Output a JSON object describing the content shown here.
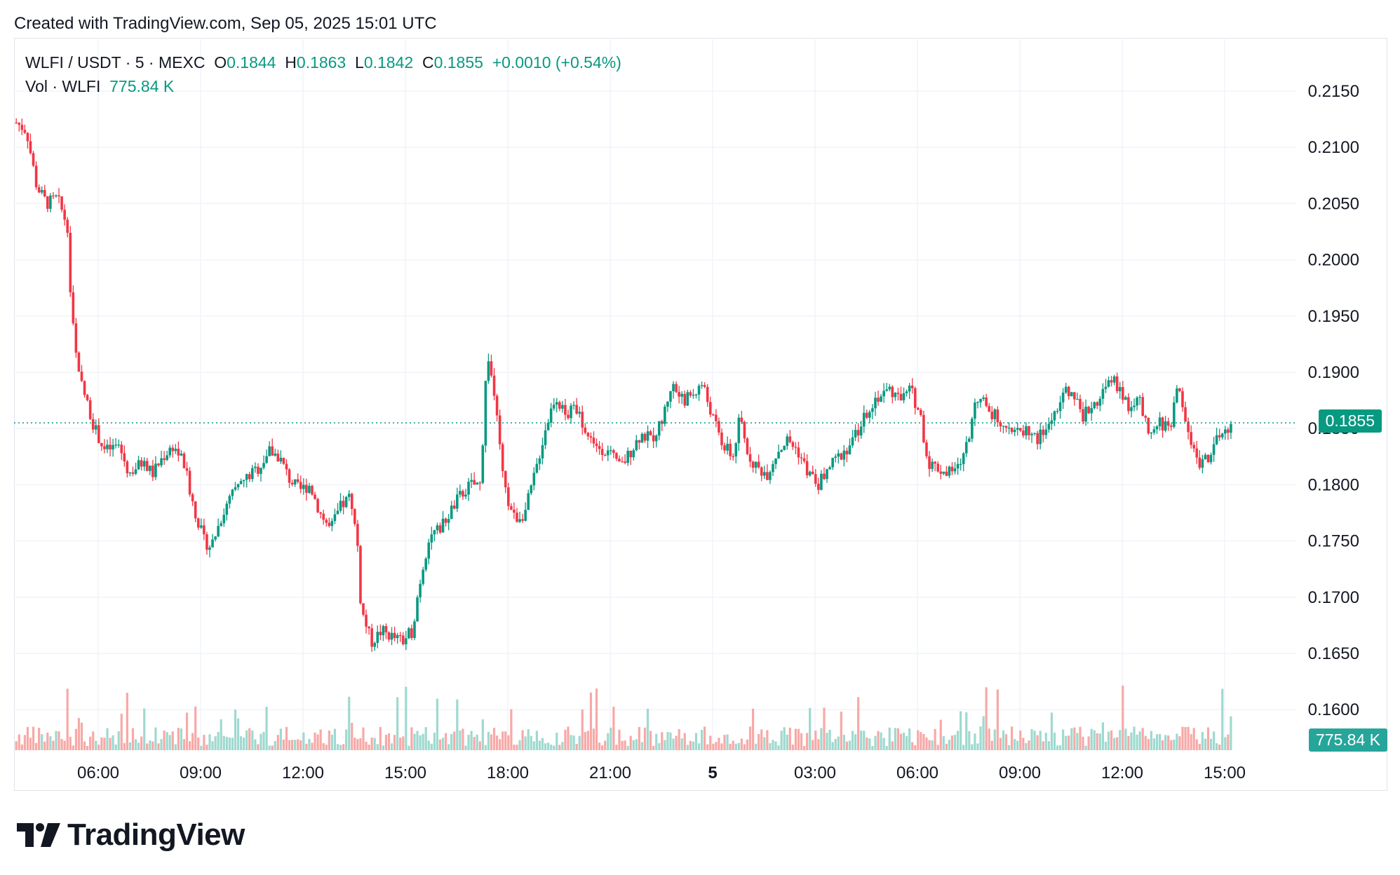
{
  "header": {
    "created_text": "Created with TradingView.com, Sep 05, 2025 15:01 UTC"
  },
  "legend": {
    "symbol": "WLFI / USDT · 5 · MEXC",
    "open_label": "O",
    "open": "0.1844",
    "high_label": "H",
    "high": "0.1863",
    "low_label": "L",
    "low": "0.1842",
    "close_label": "C",
    "close": "0.1855",
    "change": "+0.0010 (+0.54%)",
    "vol_label": "Vol · WLFI",
    "vol_value": "775.84 K"
  },
  "badges": {
    "last_price": "0.1855",
    "last_volume": "775.84 K"
  },
  "colors": {
    "up": "#089981",
    "down": "#f23645",
    "up_vol": "#9fd9cf",
    "down_vol": "#f7a9a7",
    "grid": "#f0f3fa"
  },
  "brand": {
    "name": "TradingView",
    "logo_icon": "tradingview-logo-icon"
  },
  "chart_data": {
    "type": "candlestick",
    "symbol": "WLFI/USDT",
    "interval": "5m",
    "exchange": "MEXC",
    "y_axis": {
      "ticks": [
        "0.2150",
        "0.2100",
        "0.2050",
        "0.2000",
        "0.1950",
        "0.1900",
        "0.1850",
        "0.1800",
        "0.1750",
        "0.1700",
        "0.1650",
        "0.1600"
      ],
      "ylim": [
        0.1556,
        0.2187
      ]
    },
    "x_axis": {
      "ticks": [
        "06:00",
        "09:00",
        "12:00",
        "15:00",
        "18:00",
        "21:00",
        "5",
        "03:00",
        "06:00",
        "09:00",
        "12:00",
        "15:00"
      ],
      "bold_tick": "5",
      "range_hours": [
        3.6,
        39.2
      ]
    },
    "last_price": 0.1855,
    "close_path": [
      [
        3.6,
        0.2122
      ],
      [
        3.9,
        0.2115
      ],
      [
        4.2,
        0.2065
      ],
      [
        4.5,
        0.205
      ],
      [
        4.8,
        0.2055
      ],
      [
        5.1,
        0.203
      ],
      [
        5.2,
        0.196
      ],
      [
        5.4,
        0.19
      ],
      [
        5.6,
        0.188
      ],
      [
        5.9,
        0.185
      ],
      [
        6.2,
        0.183
      ],
      [
        6.6,
        0.1835
      ],
      [
        6.9,
        0.181
      ],
      [
        7.3,
        0.182
      ],
      [
        7.6,
        0.181
      ],
      [
        7.9,
        0.1825
      ],
      [
        8.2,
        0.1835
      ],
      [
        8.5,
        0.182
      ],
      [
        8.8,
        0.178
      ],
      [
        9.1,
        0.175
      ],
      [
        9.3,
        0.1745
      ],
      [
        9.6,
        0.177
      ],
      [
        9.9,
        0.179
      ],
      [
        10.3,
        0.1805
      ],
      [
        10.7,
        0.1815
      ],
      [
        11.0,
        0.183
      ],
      [
        11.3,
        0.1825
      ],
      [
        11.6,
        0.1805
      ],
      [
        11.9,
        0.1795
      ],
      [
        12.2,
        0.18
      ],
      [
        12.5,
        0.1775
      ],
      [
        12.8,
        0.176
      ],
      [
        13.1,
        0.178
      ],
      [
        13.4,
        0.179
      ],
      [
        13.6,
        0.1745
      ],
      [
        13.7,
        0.169
      ],
      [
        14.0,
        0.166
      ],
      [
        14.3,
        0.167
      ],
      [
        14.6,
        0.1665
      ],
      [
        14.9,
        0.166
      ],
      [
        15.2,
        0.167
      ],
      [
        15.4,
        0.171
      ],
      [
        15.7,
        0.1755
      ],
      [
        16.0,
        0.176
      ],
      [
        16.3,
        0.1775
      ],
      [
        16.6,
        0.179
      ],
      [
        16.9,
        0.18
      ],
      [
        17.2,
        0.18
      ],
      [
        17.4,
        0.192
      ],
      [
        17.6,
        0.188
      ],
      [
        17.9,
        0.1795
      ],
      [
        18.2,
        0.177
      ],
      [
        18.5,
        0.1775
      ],
      [
        18.8,
        0.181
      ],
      [
        19.1,
        0.185
      ],
      [
        19.4,
        0.188
      ],
      [
        19.7,
        0.186
      ],
      [
        20.0,
        0.187
      ],
      [
        20.3,
        0.1845
      ],
      [
        20.6,
        0.1835
      ],
      [
        20.9,
        0.183
      ],
      [
        21.3,
        0.1815
      ],
      [
        21.6,
        0.183
      ],
      [
        21.9,
        0.1845
      ],
      [
        22.2,
        0.184
      ],
      [
        22.5,
        0.1855
      ],
      [
        22.8,
        0.189
      ],
      [
        23.1,
        0.1875
      ],
      [
        23.4,
        0.188
      ],
      [
        23.7,
        0.189
      ],
      [
        24.0,
        0.186
      ],
      [
        24.3,
        0.1835
      ],
      [
        24.6,
        0.1825
      ],
      [
        24.8,
        0.186
      ],
      [
        25.0,
        0.183
      ],
      [
        25.3,
        0.1815
      ],
      [
        25.6,
        0.181
      ],
      [
        25.9,
        0.183
      ],
      [
        26.2,
        0.184
      ],
      [
        26.5,
        0.183
      ],
      [
        26.8,
        0.181
      ],
      [
        27.1,
        0.18
      ],
      [
        27.4,
        0.1815
      ],
      [
        27.7,
        0.1825
      ],
      [
        28.0,
        0.1835
      ],
      [
        28.3,
        0.185
      ],
      [
        28.6,
        0.187
      ],
      [
        28.9,
        0.188
      ],
      [
        29.2,
        0.1885
      ],
      [
        29.5,
        0.1875
      ],
      [
        29.8,
        0.1885
      ],
      [
        30.1,
        0.186
      ],
      [
        30.3,
        0.182
      ],
      [
        30.6,
        0.1815
      ],
      [
        30.9,
        0.181
      ],
      [
        31.2,
        0.1815
      ],
      [
        31.5,
        0.184
      ],
      [
        31.7,
        0.188
      ],
      [
        32.0,
        0.187
      ],
      [
        32.3,
        0.186
      ],
      [
        32.6,
        0.1855
      ],
      [
        32.9,
        0.1845
      ],
      [
        33.2,
        0.185
      ],
      [
        33.5,
        0.184
      ],
      [
        33.8,
        0.185
      ],
      [
        34.1,
        0.187
      ],
      [
        34.4,
        0.1885
      ],
      [
        34.6,
        0.188
      ],
      [
        34.8,
        0.186
      ],
      [
        35.1,
        0.187
      ],
      [
        35.4,
        0.188
      ],
      [
        35.7,
        0.1895
      ],
      [
        35.9,
        0.1885
      ],
      [
        36.2,
        0.187
      ],
      [
        36.5,
        0.1875
      ],
      [
        36.8,
        0.184
      ],
      [
        37.1,
        0.1855
      ],
      [
        37.4,
        0.185
      ],
      [
        37.6,
        0.189
      ],
      [
        37.9,
        0.185
      ],
      [
        38.2,
        0.182
      ],
      [
        38.5,
        0.1825
      ],
      [
        38.8,
        0.184
      ],
      [
        39.1,
        0.185
      ]
    ]
  }
}
